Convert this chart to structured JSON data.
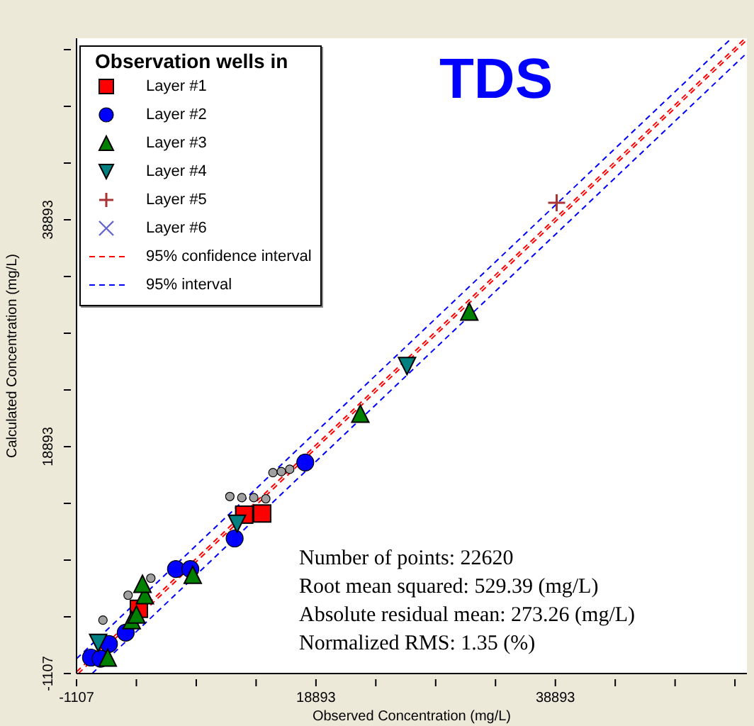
{
  "chart_data": {
    "type": "scatter",
    "title": "TDS",
    "xlabel": "Observed Concentration (mg/L)",
    "ylabel": "Calculated Concentration (mg/L)",
    "legend_title": "Observation wells in",
    "legend": "top left",
    "grid": false,
    "xlim": [
      -1107,
      54893
    ],
    "ylim": [
      -1107,
      54893
    ],
    "xticks": [
      -1107,
      {
        "value": 3893,
        "label": null
      },
      {
        "value": 8893,
        "label": null
      },
      {
        "value": 13893,
        "label": null
      },
      18893,
      {
        "value": 23893,
        "label": null
      },
      {
        "value": 28893,
        "label": null
      },
      {
        "value": 33893,
        "label": null
      },
      38893,
      {
        "value": 43893,
        "label": null
      },
      {
        "value": 48893,
        "label": null
      },
      {
        "value": 53893,
        "label": null
      }
    ],
    "yticks": [
      -1107,
      {
        "value": 3893,
        "label": null
      },
      {
        "value": 8893,
        "label": null
      },
      {
        "value": 13893,
        "label": null
      },
      18893,
      {
        "value": 23893,
        "label": null
      },
      {
        "value": 28893,
        "label": null
      },
      {
        "value": 33893,
        "label": null
      },
      38893,
      {
        "value": 43893,
        "label": null
      },
      {
        "value": 48893,
        "label": null
      },
      {
        "value": 53893,
        "label": null
      }
    ],
    "series": [
      {
        "name": "Layer #1",
        "type": "scatter",
        "marker": "square",
        "color": "#ff0000",
        "x": [
          12900,
          14400,
          4100
        ],
        "values": [
          12900,
          13000,
          4600
        ]
      },
      {
        "name": "Layer #2",
        "type": "scatter",
        "marker": "circle",
        "color": "#0000ff",
        "x": [
          18000,
          12100,
          7200,
          8400,
          100,
          1600,
          900,
          3000
        ],
        "values": [
          17500,
          10800,
          8100,
          8100,
          300,
          1500,
          200,
          2500
        ]
      },
      {
        "name": "Layer #3",
        "type": "scatter",
        "marker": "triangle",
        "color": "#008000",
        "x": [
          31700,
          22600,
          8600,
          4600,
          4400,
          1500,
          3500,
          3900
        ],
        "values": [
          30800,
          21800,
          7600,
          5800,
          6800,
          300,
          3600,
          4100
        ]
      },
      {
        "name": "Layer #4",
        "type": "scatter",
        "marker": "triangle-down",
        "color": "#008080",
        "x": [
          26500,
          12300,
          700
        ],
        "values": [
          26000,
          12100,
          1600
        ]
      },
      {
        "name": "Layer #5",
        "type": "scatter",
        "marker": "plus",
        "color": "#aa3333",
        "x": [
          39000
        ],
        "values": [
          40400
        ]
      },
      {
        "name": "Layer #6",
        "type": "scatter",
        "marker": "cross",
        "color": "#6666cc"
      },
      {
        "type": "scatter",
        "marker": "circle",
        "color": "#a0a0a0",
        "x": [
          15300,
          16000,
          16700,
          11700,
          12700,
          13700,
          14700,
          5100,
          3200,
          1100
        ],
        "values": [
          16600,
          16700,
          16900,
          14500,
          14400,
          14400,
          14300,
          7300,
          5800,
          3600
        ]
      },
      {
        "name": "95% confidence interval",
        "type": "line",
        "line_style": "dashed",
        "color": "#ff0000",
        "x": [
          -950,
          54893
        ],
        "values": [
          -1100,
          54750
        ]
      },
      {
        "type": "line",
        "line_style": "dashed",
        "color": "#ff0000",
        "x": [
          -1100,
          54750
        ],
        "values": [
          -950,
          54893
        ]
      },
      {
        "name": "95% interval",
        "type": "line",
        "line_style": "dashed",
        "color": "#0000ff",
        "x": [
          200,
          54893
        ],
        "values": [
          -1100,
          53600
        ]
      },
      {
        "type": "line",
        "line_style": "dashed",
        "color": "#0000ff",
        "x": [
          -1100,
          53600
        ],
        "values": [
          200,
          54893
        ]
      }
    ],
    "annotations": [
      "Number of points: 22620",
      "Root mean squared: 529.39 (mg/L)",
      "Absolute residual mean: 273.26 (mg/L)",
      "Normalized RMS: 1.35 (%)"
    ]
  }
}
